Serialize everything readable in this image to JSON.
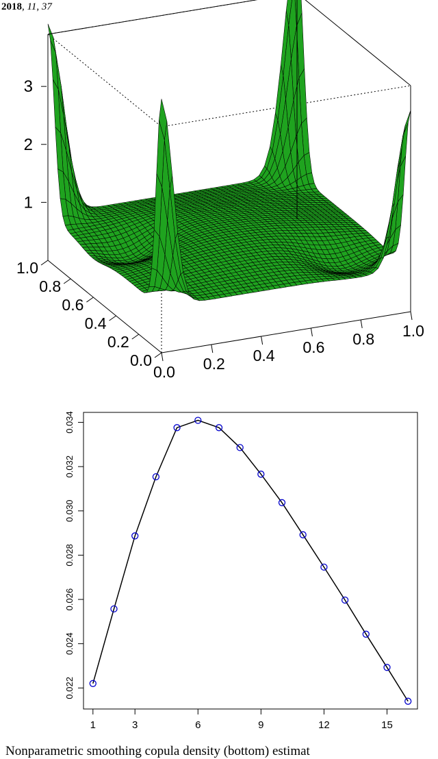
{
  "header": {
    "year": "2018",
    "volume": "11",
    "page": "37"
  },
  "surface_plot": {
    "type": "surface3d",
    "surface_color": "#1fa31f",
    "mesh_color": "#000000",
    "z_ticks": [
      "1",
      "2",
      "3"
    ],
    "y_ticks": [
      "0.0",
      "0.2",
      "0.4",
      "0.6",
      "0.8",
      "1.0"
    ],
    "x_ticks": [
      "0.0",
      "0.2",
      "0.4",
      "0.6",
      "0.8",
      "1.0"
    ]
  },
  "chart_data": {
    "type": "line",
    "x": [
      1,
      2,
      3,
      4,
      5,
      6,
      7,
      8,
      9,
      10,
      11,
      12,
      13,
      14,
      15,
      16
    ],
    "values": [
      0.0222,
      0.02557,
      0.02887,
      0.03154,
      0.03376,
      0.03409,
      0.03376,
      0.03286,
      0.03166,
      0.03037,
      0.02892,
      0.02746,
      0.02597,
      0.02443,
      0.02293,
      0.0214
    ],
    "xticks": [
      "1",
      "3",
      "6",
      "9",
      "12",
      "15"
    ],
    "xtick_values": [
      1,
      3,
      6,
      9,
      12,
      15
    ],
    "yticks": [
      "0.022",
      "0.024",
      "0.026",
      "0.028",
      "0.030",
      "0.032",
      "0.034"
    ],
    "ytick_values": [
      0.022,
      0.024,
      0.026,
      0.028,
      0.03,
      0.032,
      0.034
    ],
    "xlim": [
      0.55,
      16.45
    ],
    "ylim": [
      0.02105,
      0.03445
    ],
    "marker_color": "#0000cc",
    "line_color": "#000000",
    "title": "",
    "xlabel": "",
    "ylabel": ""
  },
  "caption": {
    "text": "Nonparametric smoothing copula density (bottom) estimat"
  }
}
